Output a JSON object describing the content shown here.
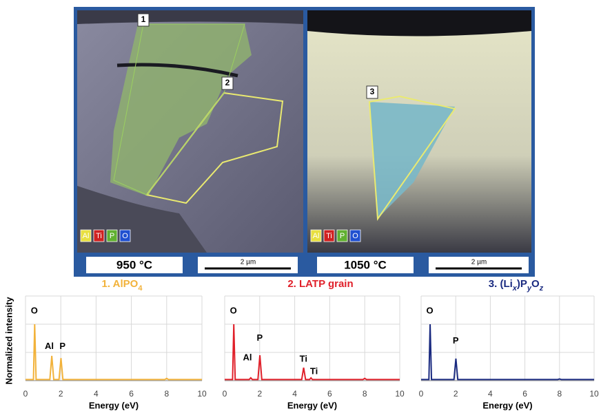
{
  "images": [
    {
      "regions": [
        "1",
        "2"
      ],
      "elements": [
        "Al",
        "Ti",
        "P",
        "O"
      ],
      "temperature": "950 °C",
      "scale": "2 µm"
    },
    {
      "regions": [
        "3"
      ],
      "elements": [
        "Al",
        "Ti",
        "P",
        "O"
      ],
      "temperature": "1050 °C",
      "scale": "2 µm"
    }
  ],
  "y_label": "Normalized intensity",
  "chart_data": [
    {
      "type": "line",
      "title": [
        {
          "text": "1. AlPO"
        },
        {
          "text": "4",
          "sub": true
        }
      ],
      "color": "#f2b23a",
      "x_label": "Energy (eV)",
      "xlim": [
        0,
        10
      ],
      "xticks": [
        0,
        2,
        4,
        6,
        8,
        10
      ],
      "ylim": [
        0,
        1.5
      ],
      "grid": true,
      "x": [
        0,
        0.45,
        0.52,
        0.6,
        1.38,
        1.49,
        1.6,
        1.9,
        2.01,
        2.12,
        7.9,
        8.0,
        8.1,
        10
      ],
      "values": [
        0.02,
        0.02,
        1.0,
        0.02,
        0.02,
        0.44,
        0.02,
        0.02,
        0.4,
        0.02,
        0.02,
        0.04,
        0.02,
        0.02
      ],
      "annotations": [
        {
          "text": "O",
          "x": 0.5,
          "y": 1.23
        },
        {
          "text": "Al",
          "x": 1.35,
          "y": 0.6
        },
        {
          "text": "P",
          "x": 2.1,
          "y": 0.6
        }
      ]
    },
    {
      "type": "line",
      "title": [
        {
          "text": "2. LATP  grain"
        }
      ],
      "color": "#e0202a",
      "x_label": "Energy (eV)",
      "xlim": [
        0,
        10
      ],
      "xticks": [
        0,
        2,
        4,
        6,
        8,
        10
      ],
      "ylim": [
        0,
        1.5
      ],
      "grid": true,
      "x": [
        0,
        0.45,
        0.52,
        0.6,
        1.4,
        1.49,
        1.58,
        1.9,
        2.01,
        2.12,
        4.4,
        4.51,
        4.62,
        4.85,
        4.93,
        5.01,
        7.9,
        8.0,
        8.1,
        10
      ],
      "values": [
        0.02,
        0.02,
        1.0,
        0.02,
        0.02,
        0.05,
        0.02,
        0.02,
        0.45,
        0.02,
        0.02,
        0.23,
        0.02,
        0.02,
        0.05,
        0.02,
        0.02,
        0.04,
        0.02,
        0.02
      ],
      "annotations": [
        {
          "text": "O",
          "x": 0.5,
          "y": 1.23
        },
        {
          "text": "Al",
          "x": 1.3,
          "y": 0.4
        },
        {
          "text": "P",
          "x": 2.0,
          "y": 0.75
        },
        {
          "text": "Ti",
          "x": 4.5,
          "y": 0.38
        },
        {
          "text": "Ti",
          "x": 5.1,
          "y": 0.16
        }
      ]
    },
    {
      "type": "line",
      "title": [
        {
          "text": "3. (Li"
        },
        {
          "text": "x",
          "sub": true,
          "italic": true
        },
        {
          "text": ")P"
        },
        {
          "text": "y",
          "sub": true,
          "italic": true
        },
        {
          "text": "O"
        },
        {
          "text": "z",
          "sub": true,
          "italic": true
        }
      ],
      "color": "#1a2a80",
      "x_label": "Energy (eV)",
      "xlim": [
        0,
        10
      ],
      "xticks": [
        0,
        2,
        4,
        6,
        8,
        10
      ],
      "ylim": [
        0,
        1.5
      ],
      "grid": true,
      "x": [
        0,
        0.45,
        0.52,
        0.6,
        1.9,
        2.01,
        2.12,
        7.9,
        8.0,
        8.1,
        10
      ],
      "values": [
        0.02,
        0.02,
        1.0,
        0.02,
        0.02,
        0.39,
        0.02,
        0.02,
        0.03,
        0.02,
        0.02
      ],
      "annotations": [
        {
          "text": "O",
          "x": 0.5,
          "y": 1.23
        },
        {
          "text": "P",
          "x": 2.0,
          "y": 0.7
        }
      ]
    }
  ]
}
